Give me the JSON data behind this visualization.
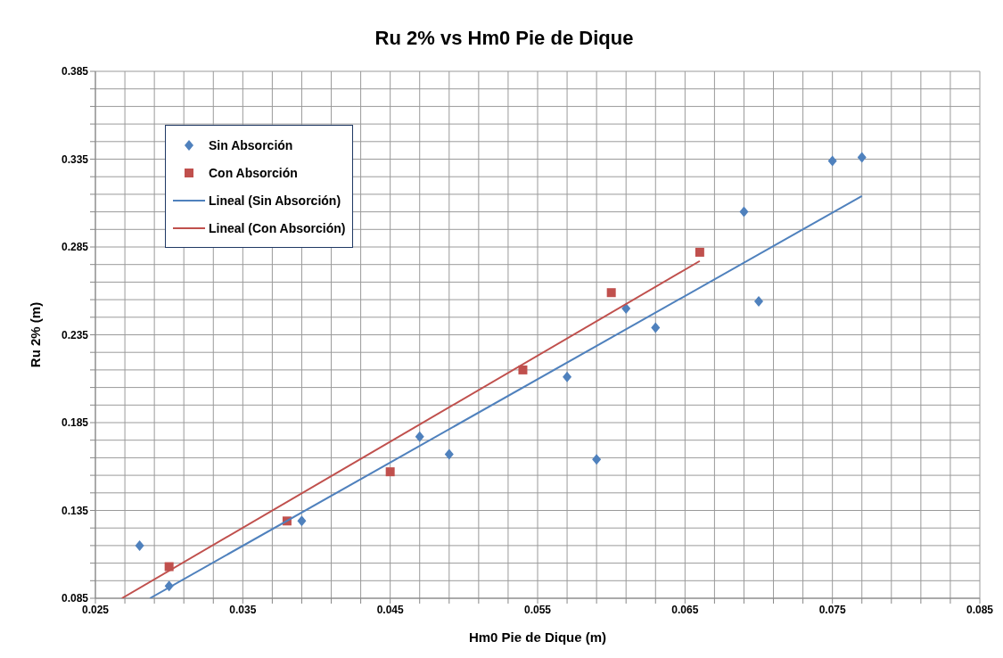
{
  "chart_data": {
    "type": "scatter",
    "title": "Ru 2% vs Hm0 Pie de Dique",
    "xlabel": "Hm0 Pie de Dique (m)",
    "ylabel": "Ru 2% (m)",
    "xlim": [
      0.025,
      0.085
    ],
    "ylim": [
      0.085,
      0.385
    ],
    "xticks": [
      0.025,
      {
        "value": 0.027,
        "label": null
      },
      {
        "value": 0.029,
        "label": null
      },
      {
        "value": 0.031,
        "label": null
      },
      {
        "value": 0.033,
        "label": null
      },
      0.035,
      {
        "value": 0.037,
        "label": null
      },
      {
        "value": 0.039,
        "label": null
      },
      {
        "value": 0.041,
        "label": null
      },
      {
        "value": 0.043,
        "label": null
      },
      0.045,
      {
        "value": 0.047,
        "label": null
      },
      {
        "value": 0.049,
        "label": null
      },
      {
        "value": 0.051,
        "label": null
      },
      {
        "value": 0.053,
        "label": null
      },
      0.055,
      {
        "value": 0.057,
        "label": null
      },
      {
        "value": 0.059,
        "label": null
      },
      {
        "value": 0.061,
        "label": null
      },
      {
        "value": 0.063,
        "label": null
      },
      0.065,
      {
        "value": 0.067,
        "label": null
      },
      {
        "value": 0.069,
        "label": null
      },
      {
        "value": 0.071,
        "label": null
      },
      {
        "value": 0.073,
        "label": null
      },
      0.075,
      {
        "value": 0.077,
        "label": null
      },
      {
        "value": 0.079,
        "label": null
      },
      {
        "value": 0.081,
        "label": null
      },
      {
        "value": 0.083,
        "label": null
      },
      0.085
    ],
    "yticks": [
      0.085,
      {
        "value": 0.095,
        "label": null
      },
      {
        "value": 0.105,
        "label": null
      },
      {
        "value": 0.115,
        "label": null
      },
      {
        "value": 0.125,
        "label": null
      },
      0.135,
      {
        "value": 0.145,
        "label": null
      },
      {
        "value": 0.155,
        "label": null
      },
      {
        "value": 0.165,
        "label": null
      },
      {
        "value": 0.175,
        "label": null
      },
      0.185,
      {
        "value": 0.195,
        "label": null
      },
      {
        "value": 0.205,
        "label": null
      },
      {
        "value": 0.215,
        "label": null
      },
      {
        "value": 0.225,
        "label": null
      },
      0.235,
      {
        "value": 0.245,
        "label": null
      },
      {
        "value": 0.255,
        "label": null
      },
      {
        "value": 0.265,
        "label": null
      },
      {
        "value": 0.275,
        "label": null
      },
      0.285,
      {
        "value": 0.295,
        "label": null
      },
      {
        "value": 0.305,
        "label": null
      },
      {
        "value": 0.315,
        "label": null
      },
      {
        "value": 0.325,
        "label": null
      },
      0.335,
      {
        "value": 0.345,
        "label": null
      },
      {
        "value": 0.355,
        "label": null
      },
      {
        "value": 0.365,
        "label": null
      },
      {
        "value": 0.375,
        "label": null
      },
      0.385
    ],
    "grid": true,
    "legend": "top left",
    "series": [
      {
        "name": "Sin Absorción",
        "marker": "diamond",
        "color": "#4f81bd",
        "x": [
          0.028,
          0.03,
          0.039,
          0.047,
          0.049,
          0.057,
          0.059,
          0.061,
          0.063,
          0.069,
          0.07,
          0.075,
          0.077
        ],
        "values": [
          0.115,
          0.092,
          0.129,
          0.177,
          0.167,
          0.211,
          0.164,
          0.25,
          0.239,
          0.305,
          0.254,
          0.334,
          0.336
        ]
      },
      {
        "name": "Con Absorción",
        "marker": "square",
        "color": "#c0504d",
        "x": [
          0.03,
          0.038,
          0.045,
          0.054,
          0.06,
          0.066
        ],
        "values": [
          0.103,
          0.129,
          0.157,
          0.215,
          0.259,
          0.282
        ]
      },
      {
        "name": "Lineal (Sin Absorción)",
        "type": "line",
        "marker": "none",
        "color": "#4f81bd",
        "x": [
          0.0287,
          0.077
        ],
        "values": [
          0.085,
          0.314
        ]
      },
      {
        "name": "Lineal (Con Absorción)",
        "type": "line",
        "marker": "none",
        "color": "#c0504d",
        "x": [
          0.0268,
          0.066
        ],
        "values": [
          0.085,
          0.277
        ]
      }
    ]
  }
}
